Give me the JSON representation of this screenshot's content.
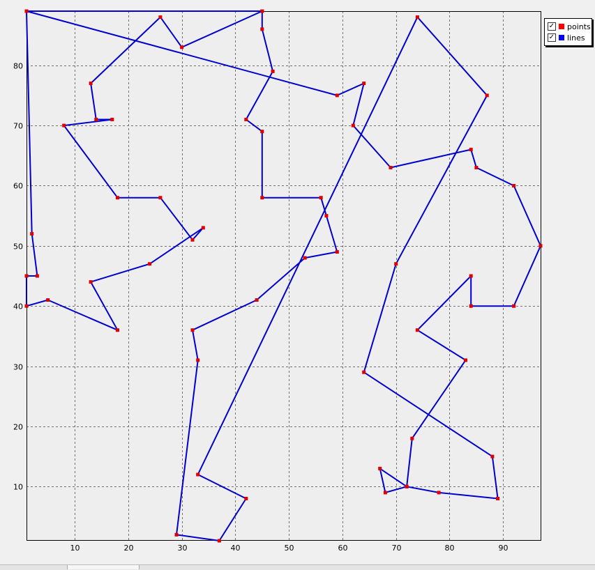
{
  "legend": {
    "items": [
      {
        "label": "points",
        "color": "#ff0000",
        "checked": true
      },
      {
        "label": "lines",
        "color": "#0000ff",
        "checked": true
      }
    ]
  },
  "colors": {
    "background": "#eeeeee",
    "line": "#0000cc",
    "point": "#e00000",
    "grid": "#707070",
    "axis": "#000000"
  },
  "chart_data": {
    "type": "line",
    "title": "",
    "xlabel": "",
    "ylabel": "",
    "xlim": [
      1,
      97
    ],
    "ylim": [
      1,
      89
    ],
    "x_ticks": [
      10,
      20,
      30,
      40,
      50,
      60,
      70,
      80,
      90
    ],
    "y_ticks": [
      10,
      20,
      30,
      40,
      50,
      60,
      70,
      80
    ],
    "grid": true,
    "legend_position": "top-right",
    "series": [
      {
        "name": "points",
        "style": "markers",
        "marker_color": "#ff0000",
        "line_color": "#0000ff",
        "x": [
          1,
          45,
          45,
          47,
          42,
          45,
          45,
          56,
          57,
          59,
          53,
          44,
          32,
          33,
          29,
          37,
          42,
          33,
          74,
          87,
          70,
          64,
          88,
          89,
          78,
          72,
          68,
          67,
          72,
          73,
          83,
          74,
          84,
          84,
          92,
          97,
          92,
          85,
          84,
          69,
          62,
          64,
          59,
          1,
          2,
          3,
          1,
          1,
          5,
          18,
          13,
          24,
          34,
          32,
          26,
          18,
          8,
          17,
          14,
          13,
          26,
          30,
          45
        ],
        "y": [
          89,
          89,
          86,
          79,
          71,
          69,
          58,
          58,
          55,
          49,
          48,
          41,
          36,
          31,
          2,
          1,
          8,
          12,
          88,
          75,
          47,
          29,
          15,
          8,
          9,
          10,
          9,
          13,
          10,
          18,
          31,
          36,
          45,
          40,
          40,
          50,
          60,
          63,
          66,
          63,
          70,
          77,
          75,
          89,
          52,
          45,
          45,
          40,
          41,
          36,
          44,
          47,
          53,
          51,
          58,
          58,
          70,
          71,
          71,
          77,
          88,
          83,
          89
        ]
      }
    ]
  }
}
